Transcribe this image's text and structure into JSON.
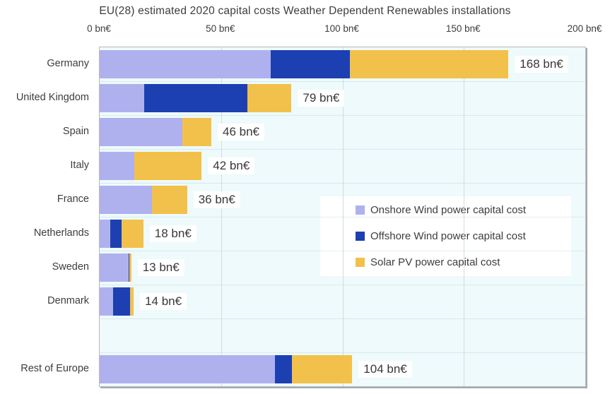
{
  "title": "EU(28) estimated 2020 capital costs Weather Dependent Renewables installations",
  "chart_data": {
    "type": "bar",
    "orientation": "horizontal",
    "stacked": true,
    "title": "EU(28) estimated 2020 capital costs Weather Dependent Renewables installations",
    "unit": "bn€",
    "xlim": [
      0,
      200
    ],
    "x_tick_values": [
      0,
      50,
      100,
      150,
      200
    ],
    "x_tick_labels": [
      "0 bn€",
      "50 bn€",
      "100 bn€",
      "150 bn€",
      "200 bn€"
    ],
    "grid": "vertical",
    "legend_position": "middle-right",
    "plot_background": "#eefafb",
    "categories": [
      "Germany",
      "United Kingdom",
      "Spain",
      "Italy",
      "France",
      "Netherlands",
      "Sweden",
      "Denmark",
      "Rest of Europe"
    ],
    "row_slots": [
      0,
      1,
      2,
      3,
      4,
      5,
      6,
      7,
      9
    ],
    "series": [
      {
        "key": "onshore",
        "name": "Onshore Wind power capital cost",
        "color": "#afb1ee",
        "values": [
          70.35,
          18.2,
          33.95,
          14.18,
          21.6,
          4.5,
          11.8,
          5.5,
          72.24
        ],
        "labels": [
          "70.35 bn€",
          null,
          "33.95 bn€",
          null,
          null,
          null,
          null,
          null,
          "72.24 bn€"
        ]
      },
      {
        "key": "offshore",
        "name": "Offshore Wind power capital cost",
        "color": "#1c40b1",
        "values": [
          32.7,
          42.62,
          0,
          0,
          0,
          4.5,
          0.35,
          7.0,
          7.0
        ],
        "labels": [
          "32.70 bn€",
          "42.62 bn€",
          null,
          null,
          null,
          null,
          null,
          null,
          null
        ]
      },
      {
        "key": "solar",
        "name": "Solar PV  power capital cost",
        "color": "#f2c14b",
        "values": [
          65.31,
          18.2,
          12.05,
          27.82,
          14.4,
          9.0,
          0.85,
          1.5,
          24.77
        ],
        "labels": [
          "65.31 bn€",
          null,
          null,
          "27.82 bn€",
          null,
          null,
          null,
          null,
          "24.77 bn€"
        ]
      }
    ],
    "totals": [
      "168 bn€",
      "79 bn€",
      "46 bn€",
      "42 bn€",
      "36 bn€",
      "18 bn€",
      "13 bn€",
      "14 bn€",
      "104 bn€"
    ]
  }
}
